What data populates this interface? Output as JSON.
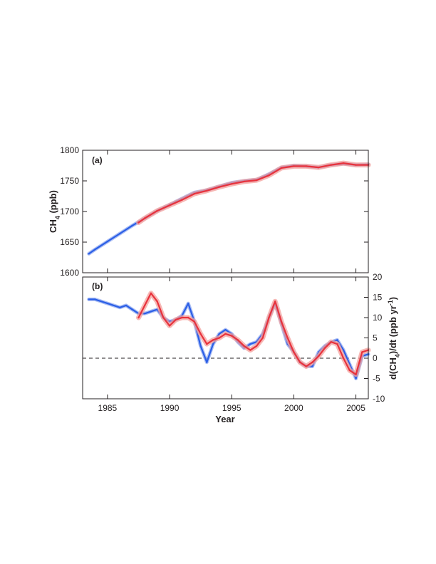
{
  "chart_data": [
    {
      "type": "line",
      "panel_label": "(a)",
      "ylabel_main": "CH",
      "ylabel_sub": "4",
      "ylabel_tail": " (ppb)",
      "xlim": [
        1983,
        2006
      ],
      "ylim": [
        1600,
        1800
      ],
      "y_ticks": [
        "1600",
        "1650",
        "1700",
        "1750",
        "1800"
      ],
      "colors": {
        "blue": "#2b5fe6",
        "blue_light": "#8fa8f0",
        "red": "#e8323c",
        "red_light": "#f4a09c"
      },
      "series": [
        {
          "color": "blue",
          "x": [
            1983.5,
            1984,
            1985,
            1986,
            1987,
            1988,
            1989,
            1990,
            1991,
            1992,
            1993,
            1994,
            1995,
            1996,
            1997,
            1998,
            1999,
            2000,
            2001,
            2002,
            2003,
            2004,
            2005,
            2006
          ],
          "y": [
            1631,
            1638,
            1651,
            1664,
            1677,
            1689,
            1701,
            1711,
            1721,
            1731,
            1735,
            1741,
            1747,
            1750,
            1752,
            1761,
            1772,
            1775,
            1774,
            1772,
            1776,
            1778,
            1776,
            1777
          ]
        },
        {
          "color": "red",
          "x": [
            1987.5,
            1988,
            1989,
            1990,
            1991,
            1992,
            1993,
            1994,
            1995,
            1996,
            1997,
            1998,
            1999,
            2000,
            2001,
            2002,
            2003,
            2004,
            2005,
            2006
          ],
          "y": [
            1682,
            1689,
            1701,
            1710,
            1719,
            1729,
            1734,
            1740,
            1745,
            1749,
            1751,
            1759,
            1771,
            1774,
            1774,
            1772,
            1776,
            1779,
            1776,
            1776
          ]
        }
      ]
    },
    {
      "type": "line",
      "panel_label": "(b)",
      "ylabel_main": "d(CH",
      "ylabel_sub": "4",
      "ylabel_tail": ")/dt (ppb yr",
      "ylabel_sup": "-1",
      "ylabel_close": ")",
      "xlabel": "Year",
      "xlim": [
        1983,
        2006
      ],
      "ylim": [
        -10,
        20
      ],
      "x_ticks": [
        "1985",
        "1990",
        "1995",
        "2000",
        "2005"
      ],
      "y_ticks": [
        "-10",
        "-5",
        "0",
        "5",
        "10",
        "15",
        "20"
      ],
      "zero_line": "dashed",
      "series": [
        {
          "color": "blue",
          "x": [
            1983.5,
            1984,
            1985,
            1986,
            1986.5,
            1987,
            1987.5,
            1988,
            1988.5,
            1989,
            1989.5,
            1990,
            1990.5,
            1991,
            1991.5,
            1992,
            1992.5,
            1993,
            1993.5,
            1994,
            1994.5,
            1995,
            1995.5,
            1996,
            1996.5,
            1997,
            1997.5,
            1998,
            1998.5,
            1999,
            1999.5,
            2000,
            2000.5,
            2001,
            2001.5,
            2002,
            2002.5,
            2003,
            2003.5,
            2004,
            2004.5,
            2005,
            2005.5,
            2006
          ],
          "y": [
            14.5,
            14.5,
            13.5,
            12.5,
            13,
            12,
            11,
            11,
            11.5,
            12,
            10,
            9,
            9.5,
            10.5,
            13.5,
            9,
            3,
            -1,
            3.5,
            6,
            7,
            6,
            4,
            2.5,
            3.5,
            4,
            6,
            10,
            13.5,
            8.5,
            3.5,
            1.5,
            -1,
            -2,
            -2,
            1.5,
            3,
            4,
            4.5,
            2,
            -1.5,
            -5,
            0.5,
            1
          ]
        },
        {
          "color": "red",
          "x": [
            1987.5,
            1988,
            1988.5,
            1989,
            1989.5,
            1990,
            1990.5,
            1991,
            1991.5,
            1992,
            1992.5,
            1993,
            1993.5,
            1994,
            1994.5,
            1995,
            1995.5,
            1996,
            1996.5,
            1997,
            1997.5,
            1998,
            1998.5,
            1999,
            1999.5,
            2000,
            2000.5,
            2001,
            2001.5,
            2002,
            2002.5,
            2003,
            2003.5,
            2004,
            2004.5,
            2005,
            2005.5,
            2006
          ],
          "y": [
            10,
            13,
            16,
            14,
            10,
            8,
            9.5,
            10,
            10,
            9,
            6,
            3.5,
            4.5,
            5,
            6,
            5.5,
            4.5,
            3,
            2,
            3,
            5,
            10,
            14,
            9,
            5,
            1.5,
            -1,
            -2,
            -1,
            0.5,
            2.5,
            4,
            3.5,
            0,
            -3,
            -4,
            1.5,
            2
          ]
        }
      ]
    }
  ]
}
